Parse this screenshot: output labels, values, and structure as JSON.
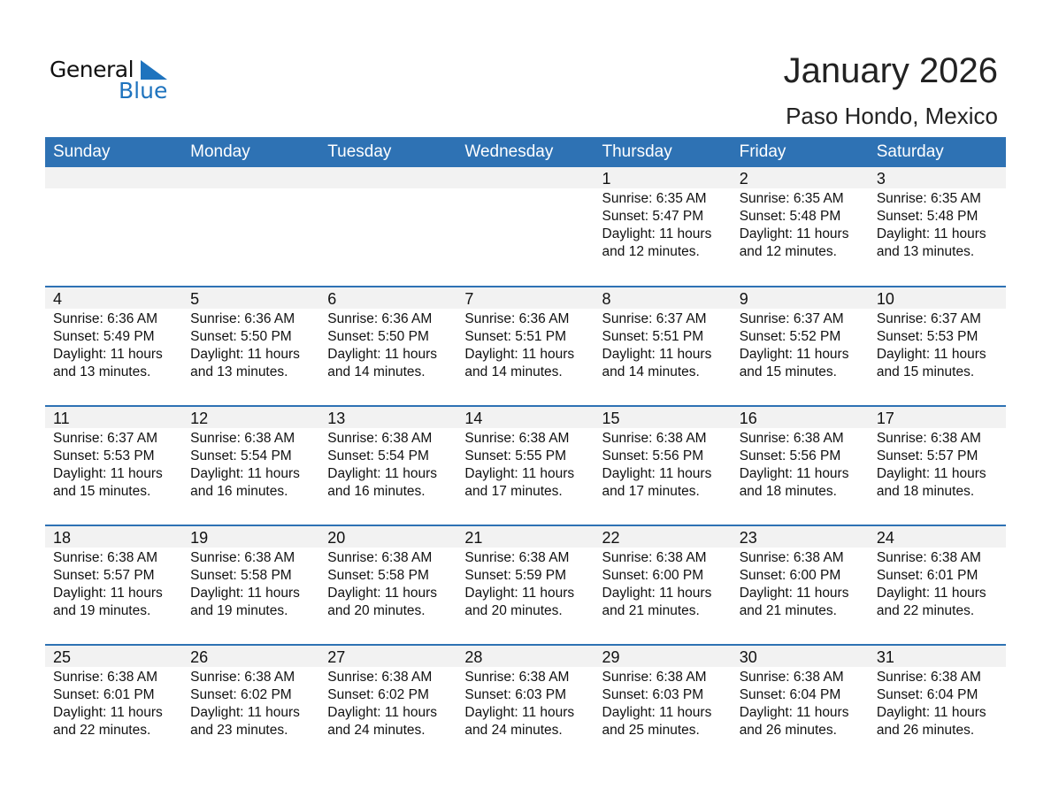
{
  "logo": {
    "text1": "General",
    "text2": "Blue",
    "accent": "#1e73be"
  },
  "title": "January 2026",
  "location": "Paso Hondo, Mexico",
  "days": [
    "Sunday",
    "Monday",
    "Tuesday",
    "Wednesday",
    "Thursday",
    "Friday",
    "Saturday"
  ],
  "weeks": [
    [
      null,
      null,
      null,
      null,
      {
        "day": "1",
        "sunrise": "Sunrise: 6:35 AM",
        "sunset": "Sunset: 5:47 PM",
        "daylight": "Daylight: 11 hours",
        "minutes": "and 12 minutes."
      },
      {
        "day": "2",
        "sunrise": "Sunrise: 6:35 AM",
        "sunset": "Sunset: 5:48 PM",
        "daylight": "Daylight: 11 hours",
        "minutes": "and 12 minutes."
      },
      {
        "day": "3",
        "sunrise": "Sunrise: 6:35 AM",
        "sunset": "Sunset: 5:48 PM",
        "daylight": "Daylight: 11 hours",
        "minutes": "and 13 minutes."
      }
    ],
    [
      {
        "day": "4",
        "sunrise": "Sunrise: 6:36 AM",
        "sunset": "Sunset: 5:49 PM",
        "daylight": "Daylight: 11 hours",
        "minutes": "and 13 minutes."
      },
      {
        "day": "5",
        "sunrise": "Sunrise: 6:36 AM",
        "sunset": "Sunset: 5:50 PM",
        "daylight": "Daylight: 11 hours",
        "minutes": "and 13 minutes."
      },
      {
        "day": "6",
        "sunrise": "Sunrise: 6:36 AM",
        "sunset": "Sunset: 5:50 PM",
        "daylight": "Daylight: 11 hours",
        "minutes": "and 14 minutes."
      },
      {
        "day": "7",
        "sunrise": "Sunrise: 6:36 AM",
        "sunset": "Sunset: 5:51 PM",
        "daylight": "Daylight: 11 hours",
        "minutes": "and 14 minutes."
      },
      {
        "day": "8",
        "sunrise": "Sunrise: 6:37 AM",
        "sunset": "Sunset: 5:51 PM",
        "daylight": "Daylight: 11 hours",
        "minutes": "and 14 minutes."
      },
      {
        "day": "9",
        "sunrise": "Sunrise: 6:37 AM",
        "sunset": "Sunset: 5:52 PM",
        "daylight": "Daylight: 11 hours",
        "minutes": "and 15 minutes."
      },
      {
        "day": "10",
        "sunrise": "Sunrise: 6:37 AM",
        "sunset": "Sunset: 5:53 PM",
        "daylight": "Daylight: 11 hours",
        "minutes": "and 15 minutes."
      }
    ],
    [
      {
        "day": "11",
        "sunrise": "Sunrise: 6:37 AM",
        "sunset": "Sunset: 5:53 PM",
        "daylight": "Daylight: 11 hours",
        "minutes": "and 15 minutes."
      },
      {
        "day": "12",
        "sunrise": "Sunrise: 6:38 AM",
        "sunset": "Sunset: 5:54 PM",
        "daylight": "Daylight: 11 hours",
        "minutes": "and 16 minutes."
      },
      {
        "day": "13",
        "sunrise": "Sunrise: 6:38 AM",
        "sunset": "Sunset: 5:54 PM",
        "daylight": "Daylight: 11 hours",
        "minutes": "and 16 minutes."
      },
      {
        "day": "14",
        "sunrise": "Sunrise: 6:38 AM",
        "sunset": "Sunset: 5:55 PM",
        "daylight": "Daylight: 11 hours",
        "minutes": "and 17 minutes."
      },
      {
        "day": "15",
        "sunrise": "Sunrise: 6:38 AM",
        "sunset": "Sunset: 5:56 PM",
        "daylight": "Daylight: 11 hours",
        "minutes": "and 17 minutes."
      },
      {
        "day": "16",
        "sunrise": "Sunrise: 6:38 AM",
        "sunset": "Sunset: 5:56 PM",
        "daylight": "Daylight: 11 hours",
        "minutes": "and 18 minutes."
      },
      {
        "day": "17",
        "sunrise": "Sunrise: 6:38 AM",
        "sunset": "Sunset: 5:57 PM",
        "daylight": "Daylight: 11 hours",
        "minutes": "and 18 minutes."
      }
    ],
    [
      {
        "day": "18",
        "sunrise": "Sunrise: 6:38 AM",
        "sunset": "Sunset: 5:57 PM",
        "daylight": "Daylight: 11 hours",
        "minutes": "and 19 minutes."
      },
      {
        "day": "19",
        "sunrise": "Sunrise: 6:38 AM",
        "sunset": "Sunset: 5:58 PM",
        "daylight": "Daylight: 11 hours",
        "minutes": "and 19 minutes."
      },
      {
        "day": "20",
        "sunrise": "Sunrise: 6:38 AM",
        "sunset": "Sunset: 5:58 PM",
        "daylight": "Daylight: 11 hours",
        "minutes": "and 20 minutes."
      },
      {
        "day": "21",
        "sunrise": "Sunrise: 6:38 AM",
        "sunset": "Sunset: 5:59 PM",
        "daylight": "Daylight: 11 hours",
        "minutes": "and 20 minutes."
      },
      {
        "day": "22",
        "sunrise": "Sunrise: 6:38 AM",
        "sunset": "Sunset: 6:00 PM",
        "daylight": "Daylight: 11 hours",
        "minutes": "and 21 minutes."
      },
      {
        "day": "23",
        "sunrise": "Sunrise: 6:38 AM",
        "sunset": "Sunset: 6:00 PM",
        "daylight": "Daylight: 11 hours",
        "minutes": "and 21 minutes."
      },
      {
        "day": "24",
        "sunrise": "Sunrise: 6:38 AM",
        "sunset": "Sunset: 6:01 PM",
        "daylight": "Daylight: 11 hours",
        "minutes": "and 22 minutes."
      }
    ],
    [
      {
        "day": "25",
        "sunrise": "Sunrise: 6:38 AM",
        "sunset": "Sunset: 6:01 PM",
        "daylight": "Daylight: 11 hours",
        "minutes": "and 22 minutes."
      },
      {
        "day": "26",
        "sunrise": "Sunrise: 6:38 AM",
        "sunset": "Sunset: 6:02 PM",
        "daylight": "Daylight: 11 hours",
        "minutes": "and 23 minutes."
      },
      {
        "day": "27",
        "sunrise": "Sunrise: 6:38 AM",
        "sunset": "Sunset: 6:02 PM",
        "daylight": "Daylight: 11 hours",
        "minutes": "and 24 minutes."
      },
      {
        "day": "28",
        "sunrise": "Sunrise: 6:38 AM",
        "sunset": "Sunset: 6:03 PM",
        "daylight": "Daylight: 11 hours",
        "minutes": "and 24 minutes."
      },
      {
        "day": "29",
        "sunrise": "Sunrise: 6:38 AM",
        "sunset": "Sunset: 6:03 PM",
        "daylight": "Daylight: 11 hours",
        "minutes": "and 25 minutes."
      },
      {
        "day": "30",
        "sunrise": "Sunrise: 6:38 AM",
        "sunset": "Sunset: 6:04 PM",
        "daylight": "Daylight: 11 hours",
        "minutes": "and 26 minutes."
      },
      {
        "day": "31",
        "sunrise": "Sunrise: 6:38 AM",
        "sunset": "Sunset: 6:04 PM",
        "daylight": "Daylight: 11 hours",
        "minutes": "and 26 minutes."
      }
    ]
  ]
}
